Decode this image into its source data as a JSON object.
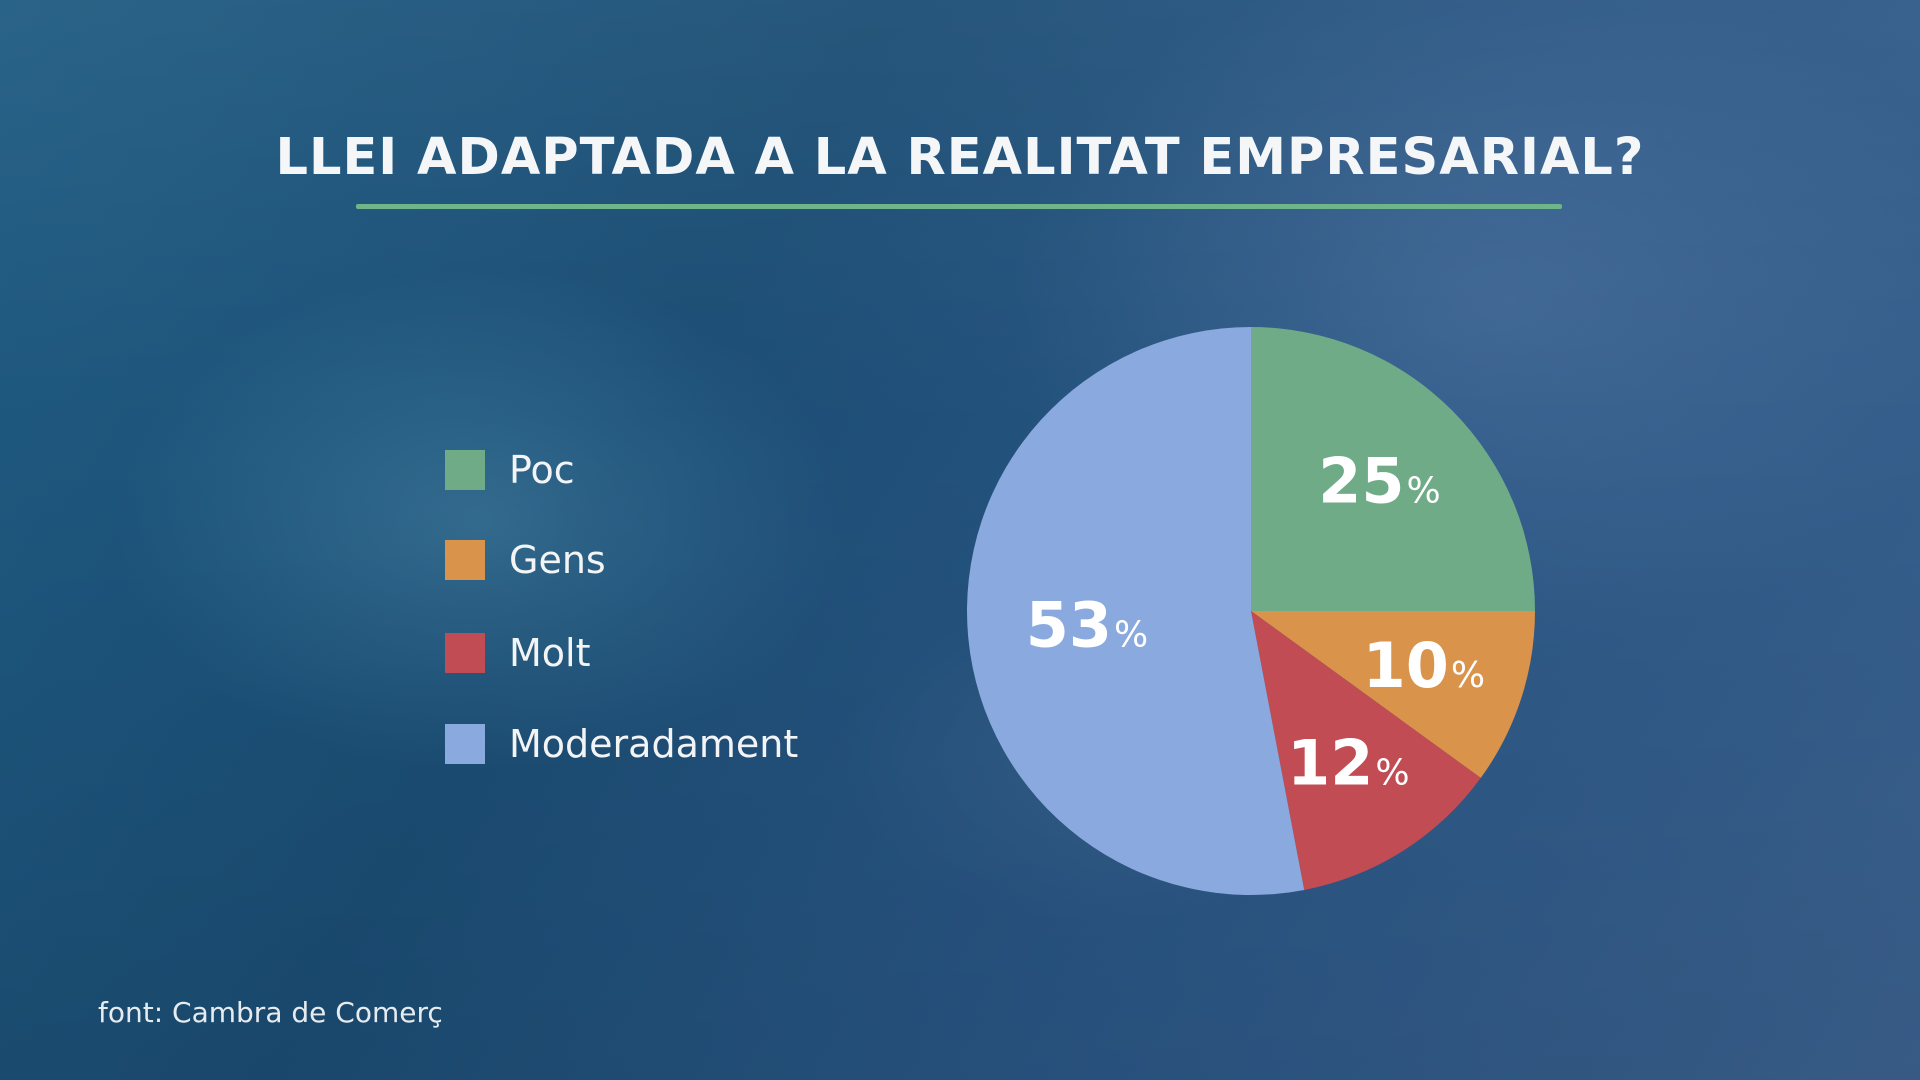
{
  "title": "LLEI ADAPTADA A LA REALITAT EMPRESARIAL?",
  "source": "font: Cambra de Comerç",
  "chart_data": {
    "type": "pie",
    "title": "LLEI ADAPTADA A LA REALITAT EMPRESARIAL?",
    "unit": "%",
    "legend_position": "left",
    "slices": [
      {
        "label": "Poc",
        "value": 25,
        "color": "#6fab87"
      },
      {
        "label": "Gens",
        "value": 10,
        "color": "#d9934b"
      },
      {
        "label": "Molt",
        "value": 12,
        "color": "#c24c54"
      },
      {
        "label": "Moderadament",
        "value": 53,
        "color": "#8aa9df"
      }
    ]
  }
}
